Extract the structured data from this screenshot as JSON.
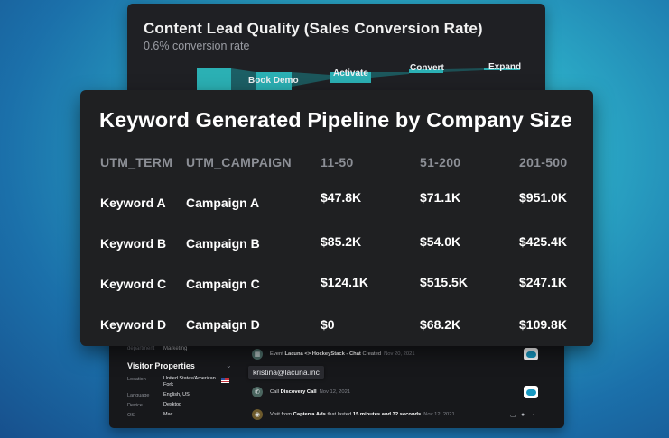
{
  "funnel_card": {
    "title": "Content Lead Quality (Sales Conversion Rate)",
    "subtitle": "0.6% conversion rate",
    "stages": [
      "Book Demo",
      "Activate",
      "Convert",
      "Expand"
    ],
    "accent": "#2bb0b4"
  },
  "table_card": {
    "title": "Keyword Generated Pipeline by Company Size",
    "columns": [
      "UTM_TERM",
      "UTM_CAMPAIGN",
      "11-50",
      "51-200",
      "201-500"
    ],
    "rows": [
      [
        "Keyword A",
        "Campaign A",
        "$47.8K",
        "$71.1K",
        "$951.0K"
      ],
      [
        "Keyword B",
        "Campaign B",
        "$85.2K",
        "$54.0K",
        "$425.4K"
      ],
      [
        "Keyword C",
        "Campaign C",
        "$124.1K",
        "$515.5K",
        "$247.1K"
      ],
      [
        "Keyword D",
        "Campaign D",
        "$0",
        "$68.2K",
        "$109.8K"
      ]
    ]
  },
  "activity_card": {
    "department_label": "department",
    "department_value": "Marketing",
    "visitor_properties_title": "Visitor Properties",
    "properties": [
      {
        "key": "Location",
        "value": "United States/American Fork"
      },
      {
        "key": "Language",
        "value": "English, US"
      },
      {
        "key": "Device",
        "value": "Desktop"
      },
      {
        "key": "OS",
        "value": "Mac"
      }
    ],
    "email": "kristina@lacuna.inc",
    "events": [
      {
        "prefix": "Event ",
        "bold": "Lacuna <> HockeyStack - Chat",
        "suffix": " Created",
        "date": "Nov 20, 2021",
        "icon": "calendar-icon"
      },
      {
        "prefix": "Call ",
        "bold": "Discovery Call",
        "suffix": "",
        "date": "Nov 12, 2021",
        "icon": "phone-icon"
      },
      {
        "prefix": "Visit from ",
        "bold": "Capterra Ads",
        "middle": " that lasted ",
        "bold2": "15 minutes and 32 seconds",
        "date": "Nov 12, 2021",
        "icon": "globe-icon"
      }
    ]
  }
}
